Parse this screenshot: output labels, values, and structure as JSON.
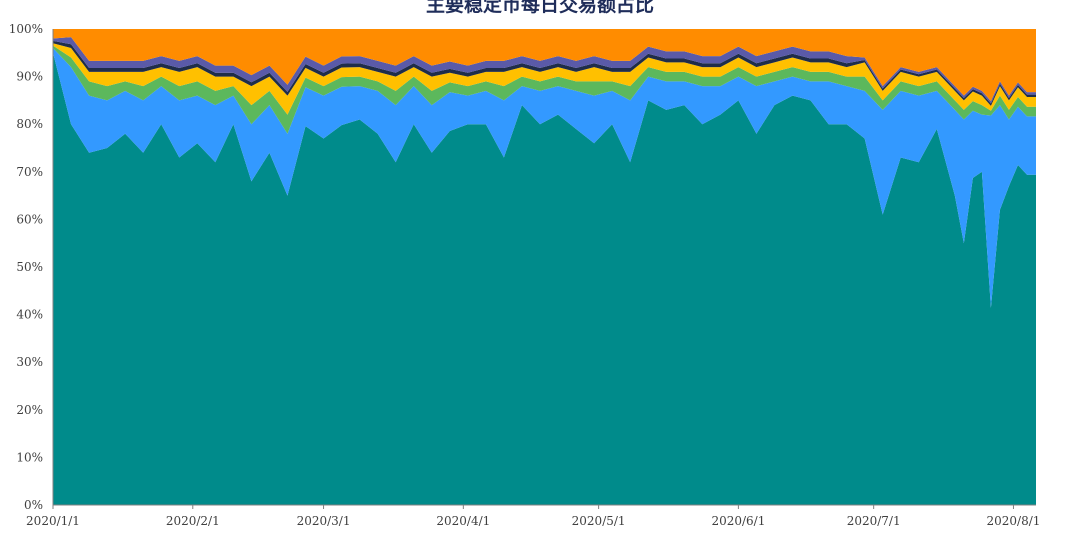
{
  "chart_data": {
    "type": "area",
    "stacked": true,
    "normalized": true,
    "title": "主要稳定币每日交易额占比",
    "x": [
      "2020/1/1",
      "2020/1/5",
      "2020/1/9",
      "2020/1/13",
      "2020/1/17",
      "2020/1/21",
      "2020/1/25",
      "2020/1/29",
      "2020/2/2",
      "2020/2/6",
      "2020/2/10",
      "2020/2/14",
      "2020/2/18",
      "2020/2/22",
      "2020/2/26",
      "2020/3/1",
      "2020/3/5",
      "2020/3/9",
      "2020/3/13",
      "2020/3/17",
      "2020/3/21",
      "2020/3/25",
      "2020/3/29",
      "2020/4/2",
      "2020/4/6",
      "2020/4/10",
      "2020/4/14",
      "2020/4/18",
      "2020/4/22",
      "2020/4/26",
      "2020/4/30",
      "2020/5/4",
      "2020/5/8",
      "2020/5/12",
      "2020/5/16",
      "2020/5/20",
      "2020/5/24",
      "2020/5/28",
      "2020/6/1",
      "2020/6/5",
      "2020/6/9",
      "2020/6/13",
      "2020/6/17",
      "2020/6/21",
      "2020/6/25",
      "2020/6/29",
      "2020/7/3",
      "2020/7/7",
      "2020/7/11",
      "2020/7/15",
      "2020/7/19",
      "2020/7/21",
      "2020/7/23",
      "2020/7/25",
      "2020/7/27",
      "2020/7/29",
      "2020/7/31",
      "2020/8/2",
      "2020/8/4",
      "2020/8/6"
    ],
    "series": [
      {
        "color": "#008b8b",
        "values": [
          95,
          80,
          74,
          75,
          78,
          74,
          80,
          73,
          76,
          72,
          80,
          68,
          74,
          65,
          78,
          77,
          79,
          81,
          78,
          72,
          80,
          74,
          77,
          80,
          80,
          73,
          84,
          80,
          82,
          79,
          76,
          80,
          72,
          85,
          83,
          84,
          80,
          82,
          85,
          78,
          84,
          86,
          85,
          80,
          80,
          77,
          61,
          73,
          72,
          79,
          65,
          55,
          68,
          70,
          41,
          62,
          67,
          70,
          68,
          68
        ]
      },
      {
        "color": "#3399ff",
        "values": [
          1,
          12,
          12,
          10,
          9,
          11,
          8,
          12,
          10,
          12,
          6,
          12,
          10,
          13,
          8,
          9,
          8,
          7,
          9,
          12,
          8,
          10,
          8,
          6,
          7,
          12,
          4,
          7,
          6,
          8,
          10,
          7,
          13,
          5,
          6,
          5,
          8,
          6,
          5,
          10,
          5,
          4,
          4,
          9,
          8,
          10,
          22,
          14,
          14,
          8,
          18,
          26,
          14,
          12,
          40,
          22,
          14,
          12,
          12,
          12
        ]
      },
      {
        "color": "#5cb85c",
        "values": [
          0.5,
          2,
          3,
          3,
          2,
          3,
          2,
          3,
          3,
          3,
          2,
          4,
          3,
          4,
          2,
          2,
          2,
          2,
          2,
          3,
          2,
          3,
          2,
          2,
          2,
          3,
          2,
          2,
          2,
          2,
          3,
          2,
          3,
          2,
          2,
          2,
          2,
          2,
          2,
          2,
          2,
          2,
          2,
          2,
          2,
          3,
          2,
          2,
          2,
          2,
          2,
          2,
          2,
          2,
          1,
          2,
          2,
          2,
          2,
          2
        ]
      },
      {
        "color": "#ffc000",
        "values": [
          0.5,
          2,
          2,
          3,
          2,
          3,
          2,
          3,
          3,
          3,
          2,
          4,
          3,
          4,
          2,
          2,
          2,
          2,
          2,
          3,
          2,
          3,
          2,
          2,
          2,
          3,
          2,
          2,
          2,
          2,
          3,
          2,
          3,
          2,
          2,
          2,
          2,
          2,
          2,
          2,
          2,
          2,
          2,
          2,
          2,
          3,
          2,
          2,
          2,
          2,
          2,
          2,
          2,
          2,
          1,
          2,
          2,
          2,
          2,
          2
        ]
      },
      {
        "color": "#1f2d4a",
        "values": [
          0.5,
          0.8,
          0.8,
          0.8,
          0.8,
          0.8,
          0.8,
          0.8,
          0.8,
          0.8,
          0.8,
          0.8,
          0.8,
          0.8,
          0.8,
          0.8,
          0.8,
          0.8,
          0.8,
          0.8,
          0.8,
          0.8,
          0.8,
          0.8,
          0.8,
          0.8,
          0.8,
          0.8,
          0.8,
          0.8,
          0.8,
          0.8,
          0.8,
          0.8,
          0.8,
          0.8,
          0.8,
          0.8,
          0.8,
          0.8,
          0.8,
          0.8,
          0.8,
          0.8,
          0.8,
          0.5,
          0.5,
          0.5,
          0.5,
          0.5,
          0.5,
          0.5,
          0.5,
          0.5,
          0.5,
          0.5,
          0.5,
          0.5,
          0.5,
          0.5
        ]
      },
      {
        "color": "#5a5aa8",
        "values": [
          0.5,
          1.5,
          1.5,
          1.5,
          1.5,
          1.5,
          1.5,
          1.5,
          1.5,
          1.5,
          1.5,
          1.5,
          1.5,
          1.5,
          1.5,
          1.5,
          1.5,
          1.5,
          1.5,
          1.5,
          1.5,
          1.5,
          1.5,
          1.5,
          1.5,
          1.5,
          1.5,
          1.5,
          1.5,
          1.5,
          1.5,
          1.5,
          1.5,
          1.5,
          1.5,
          1.5,
          1.5,
          1.5,
          1.5,
          1.5,
          1.5,
          1.5,
          1.5,
          1.5,
          1.5,
          0.5,
          0.5,
          0.5,
          0.5,
          0.5,
          0.5,
          0.5,
          0.5,
          0.5,
          0.5,
          0.5,
          0.5,
          0.5,
          0.5,
          0.5
        ]
      },
      {
        "color": "#ff8c00",
        "values": [
          2,
          1.7,
          6.7,
          6.7,
          6.7,
          6.7,
          5.7,
          6.7,
          5.7,
          7.7,
          7.7,
          9.7,
          7.7,
          11.7,
          5.7,
          7.7,
          5.7,
          5.7,
          6.7,
          7.7,
          5.7,
          7.7,
          6.7,
          7.7,
          6.7,
          6.7,
          5.7,
          6.7,
          5.7,
          6.7,
          5.7,
          6.7,
          6.7,
          3.7,
          4.7,
          4.7,
          5.7,
          5.7,
          3.7,
          5.7,
          4.7,
          3.7,
          4.7,
          4.7,
          5.7,
          6,
          12,
          8,
          9,
          8,
          12,
          14,
          12,
          13,
          15,
          11,
          14,
          11,
          13,
          13
        ]
      }
    ],
    "ylim": [
      0,
      1
    ],
    "y_ticks": [
      "0%",
      "10%",
      "20%",
      "30%",
      "40%",
      "50%",
      "60%",
      "70%",
      "80%",
      "90%",
      "100%"
    ],
    "x_tick_labels": [
      "2020/1/1",
      "2020/2/1",
      "2020/3/1",
      "2020/4/1",
      "2020/5/1",
      "2020/6/1",
      "2020/7/1",
      "2020/8/1"
    ]
  }
}
